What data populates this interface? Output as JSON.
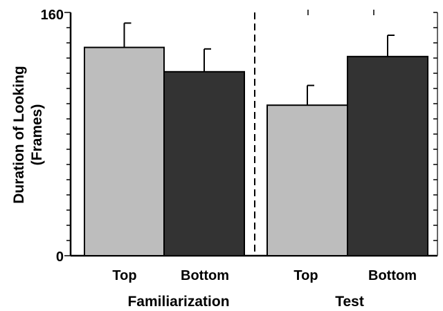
{
  "chart_data": {
    "type": "bar",
    "ylabel_line1": "Duration of Looking",
    "ylabel_line2": "(Frames)",
    "ylim": [
      0,
      160
    ],
    "yticks": [
      "0",
      "160"
    ],
    "minor_tick_step": 10,
    "groups": [
      {
        "label": "Familiarization",
        "bars": [
          {
            "category": "Top",
            "value": 137,
            "error": 16,
            "color": "#bdbdbd"
          },
          {
            "category": "Bottom",
            "value": 121,
            "error": 15,
            "color": "#333333"
          }
        ]
      },
      {
        "label": "Test",
        "bars": [
          {
            "category": "Top",
            "value": 99,
            "error": 13,
            "color": "#bdbdbd"
          },
          {
            "category": "Bottom",
            "value": 131,
            "error": 14,
            "color": "#333333"
          }
        ]
      }
    ],
    "divider": "dashed line between Familiarization and Test",
    "legend": "none",
    "grid": false
  }
}
